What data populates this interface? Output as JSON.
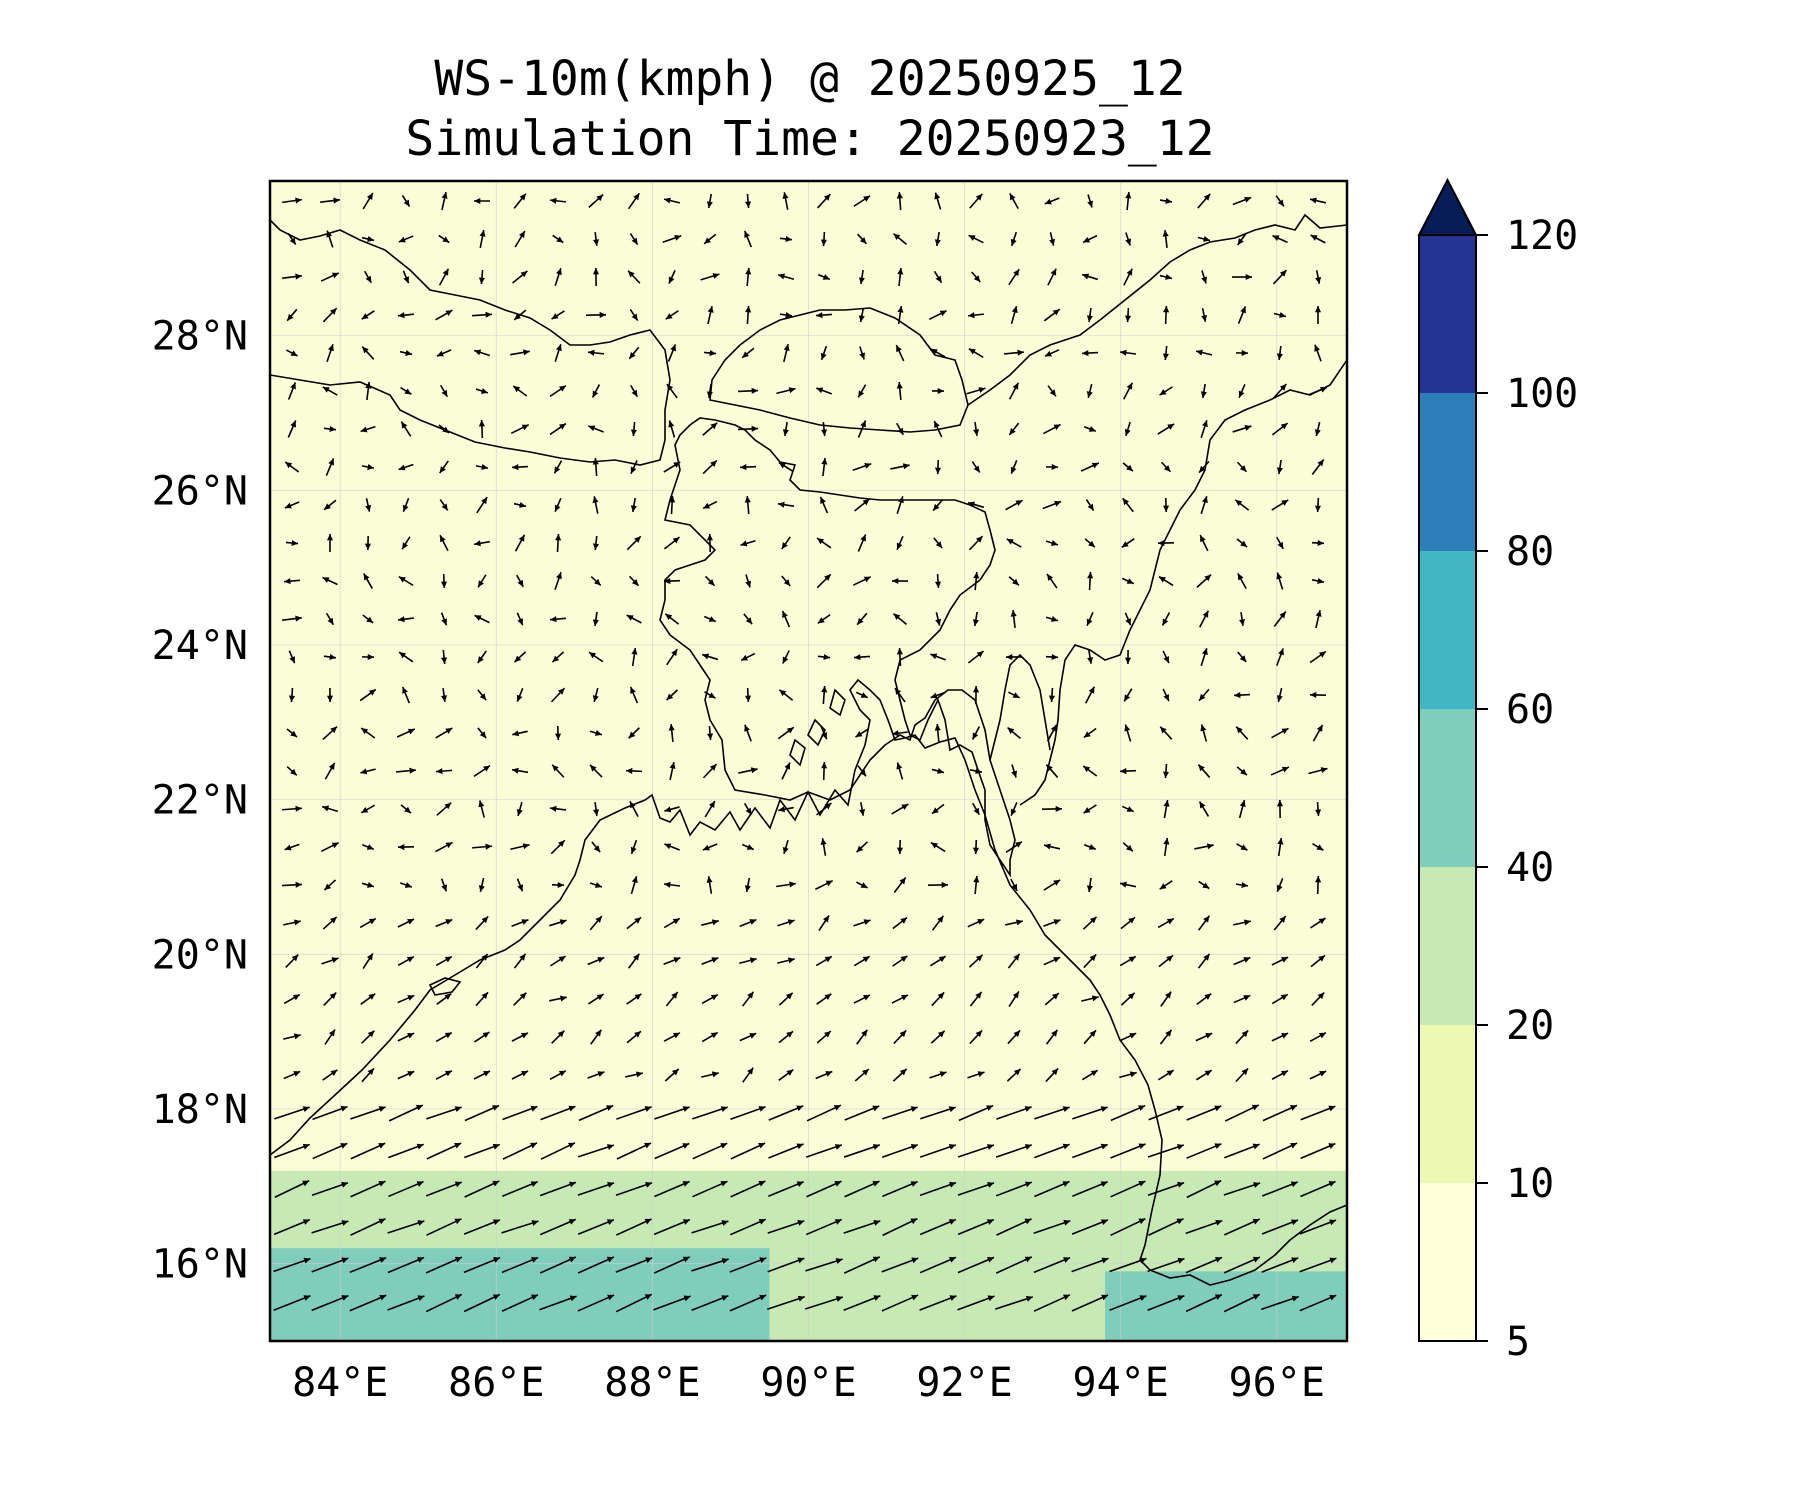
{
  "title": {
    "line1": "WS-10m(kmph) @ 20250925_12",
    "line2": "Simulation Time: 20250923_12"
  },
  "map": {
    "lon_range": [
      83.1,
      96.9
    ],
    "lat_range": [
      15.0,
      30.0
    ],
    "lon_ticks": [
      {
        "value": 84,
        "label": "84°E"
      },
      {
        "value": 86,
        "label": "86°E"
      },
      {
        "value": 88,
        "label": "88°E"
      },
      {
        "value": 90,
        "label": "90°E"
      },
      {
        "value": 92,
        "label": "92°E"
      },
      {
        "value": 94,
        "label": "94°E"
      },
      {
        "value": 96,
        "label": "96°E"
      }
    ],
    "lat_ticks": [
      {
        "value": 16,
        "label": "16°N"
      },
      {
        "value": 18,
        "label": "18°N"
      },
      {
        "value": 20,
        "label": "20°N"
      },
      {
        "value": 22,
        "label": "22°N"
      },
      {
        "value": 24,
        "label": "24°N"
      },
      {
        "value": 26,
        "label": "26°N"
      },
      {
        "value": 28,
        "label": "28°N"
      }
    ],
    "gridlines": true,
    "background_color": "#fbfdd6"
  },
  "colorbar": {
    "position": "right",
    "extend": "max",
    "levels": [
      {
        "value": 5,
        "label": "5"
      },
      {
        "value": 10,
        "label": "10"
      },
      {
        "value": 20,
        "label": "20"
      },
      {
        "value": 40,
        "label": "40"
      },
      {
        "value": 60,
        "label": "60"
      },
      {
        "value": 80,
        "label": "80"
      },
      {
        "value": 100,
        "label": "100"
      },
      {
        "value": 120,
        "label": "120"
      }
    ],
    "colors": [
      "#ffffd9",
      "#edf8b1",
      "#c7e9b4",
      "#7fcdbb",
      "#41b6c4",
      "#2c7fb8",
      "#253494",
      "#081d58"
    ]
  },
  "wind_zones": [
    {
      "lon": [
        83.1,
        96.9
      ],
      "lat": [
        15.0,
        17.2
      ],
      "speed_kmph": 35
    },
    {
      "lon": [
        83.1,
        89.5
      ],
      "lat": [
        15.0,
        16.2
      ],
      "speed_kmph": 45
    },
    {
      "lon": [
        93.8,
        96.9
      ],
      "lat": [
        15.0,
        15.9
      ],
      "speed_kmph": 45
    }
  ]
}
